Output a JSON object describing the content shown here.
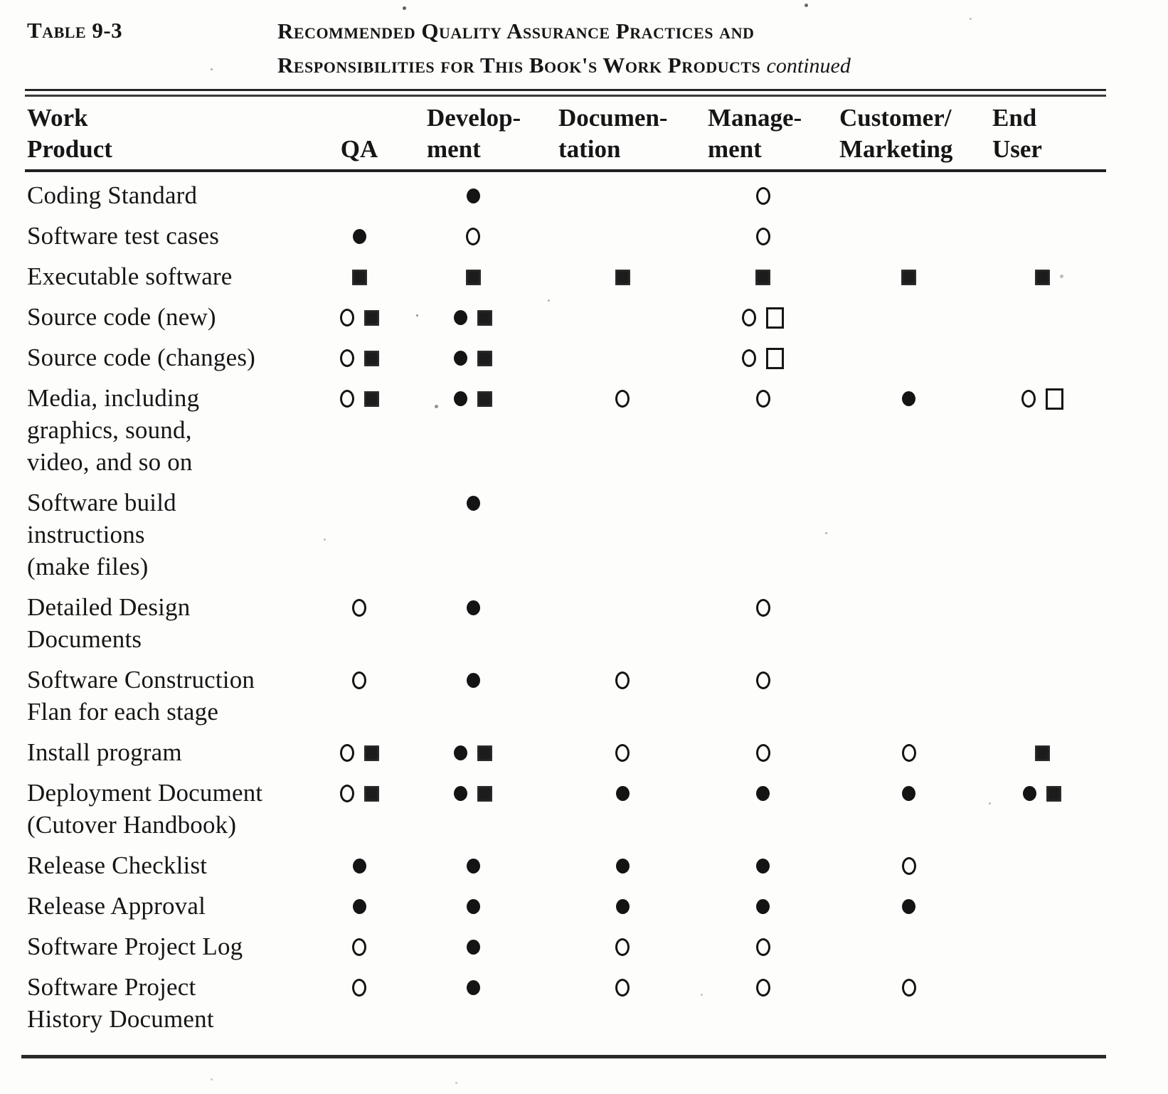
{
  "header": {
    "table_label": "Table 9-3",
    "title_line1": "Recommended Quality Assurance Practices and",
    "title_line2": "Responsibilities for This Book's Work Products",
    "title_suffix": "continued"
  },
  "symbols": {
    "filled-circle": "●",
    "open-circle": "○",
    "filled-square": "■",
    "open-square": "□"
  },
  "table": {
    "columns": [
      {
        "id": "work_product",
        "lines": [
          "Work",
          "Product"
        ]
      },
      {
        "id": "qa",
        "lines": [
          "QA"
        ]
      },
      {
        "id": "development",
        "lines": [
          "Develop-",
          "ment"
        ]
      },
      {
        "id": "documentation",
        "lines": [
          "Documen-",
          "tation"
        ]
      },
      {
        "id": "management",
        "lines": [
          "Manage-",
          "ment"
        ]
      },
      {
        "id": "customer_marketing",
        "lines": [
          "Customer/",
          "Marketing"
        ]
      },
      {
        "id": "end_user",
        "lines": [
          "End",
          "User"
        ]
      }
    ],
    "rows": [
      {
        "product_lines": [
          "Coding Standard"
        ],
        "cells": {
          "qa": [],
          "development": [
            "filled-circle"
          ],
          "documentation": [],
          "management": [
            "open-circle"
          ],
          "customer_marketing": [],
          "end_user": []
        }
      },
      {
        "product_lines": [
          "Software test cases"
        ],
        "cells": {
          "qa": [
            "filled-circle"
          ],
          "development": [
            "open-circle"
          ],
          "documentation": [],
          "management": [
            "open-circle"
          ],
          "customer_marketing": [],
          "end_user": []
        }
      },
      {
        "product_lines": [
          "Executable software"
        ],
        "cells": {
          "qa": [
            "filled-square"
          ],
          "development": [
            "filled-square"
          ],
          "documentation": [
            "filled-square"
          ],
          "management": [
            "filled-square"
          ],
          "customer_marketing": [
            "filled-square"
          ],
          "end_user": [
            "filled-square"
          ]
        }
      },
      {
        "product_lines": [
          "Source code (new)"
        ],
        "cells": {
          "qa": [
            "open-circle",
            "filled-square"
          ],
          "development": [
            "filled-circle",
            "filled-square"
          ],
          "documentation": [],
          "management": [
            "open-circle",
            "open-square"
          ],
          "customer_marketing": [],
          "end_user": []
        }
      },
      {
        "product_lines": [
          "Source code (changes)"
        ],
        "cells": {
          "qa": [
            "open-circle",
            "filled-square"
          ],
          "development": [
            "filled-circle",
            "filled-square"
          ],
          "documentation": [],
          "management": [
            "open-circle",
            "open-square"
          ],
          "customer_marketing": [],
          "end_user": []
        }
      },
      {
        "product_lines": [
          "Media, including",
          "graphics, sound,",
          "video, and so on"
        ],
        "cells": {
          "qa": [
            "open-circle",
            "filled-square"
          ],
          "development": [
            "filled-circle",
            "filled-square"
          ],
          "documentation": [
            "open-circle"
          ],
          "management": [
            "open-circle"
          ],
          "customer_marketing": [
            "filled-circle"
          ],
          "end_user": [
            "open-circle",
            "open-square"
          ]
        }
      },
      {
        "product_lines": [
          "Software build",
          "instructions",
          "(make files)"
        ],
        "cells": {
          "qa": [],
          "development": [
            "filled-circle"
          ],
          "documentation": [],
          "management": [],
          "customer_marketing": [],
          "end_user": []
        }
      },
      {
        "product_lines": [
          "Detailed Design",
          "Documents"
        ],
        "cells": {
          "qa": [
            "open-circle"
          ],
          "development": [
            "filled-circle"
          ],
          "documentation": [],
          "management": [
            "open-circle"
          ],
          "customer_marketing": [],
          "end_user": []
        }
      },
      {
        "product_lines": [
          "Software  Construction",
          "Flan for each stage"
        ],
        "cells": {
          "qa": [
            "open-circle"
          ],
          "development": [
            "filled-circle"
          ],
          "documentation": [
            "open-circle"
          ],
          "management": [
            "open-circle"
          ],
          "customer_marketing": [],
          "end_user": []
        }
      },
      {
        "product_lines": [
          "Install program"
        ],
        "cells": {
          "qa": [
            "open-circle",
            "filled-square"
          ],
          "development": [
            "filled-circle",
            "filled-square"
          ],
          "documentation": [
            "open-circle"
          ],
          "management": [
            "open-circle"
          ],
          "customer_marketing": [
            "open-circle"
          ],
          "end_user": [
            "filled-square"
          ]
        }
      },
      {
        "product_lines": [
          "Deployment Document",
          "(Cutover  Handbook)"
        ],
        "cells": {
          "qa": [
            "open-circle",
            "filled-square"
          ],
          "development": [
            "filled-circle",
            "filled-square"
          ],
          "documentation": [
            "filled-circle"
          ],
          "management": [
            "filled-circle"
          ],
          "customer_marketing": [
            "filled-circle"
          ],
          "end_user": [
            "filled-circle",
            "filled-square"
          ]
        }
      },
      {
        "product_lines": [
          "Release  Checklist"
        ],
        "cells": {
          "qa": [
            "filled-circle"
          ],
          "development": [
            "filled-circle"
          ],
          "documentation": [
            "filled-circle"
          ],
          "management": [
            "filled-circle"
          ],
          "customer_marketing": [
            "open-circle"
          ],
          "end_user": []
        }
      },
      {
        "product_lines": [
          "Release  Approval"
        ],
        "cells": {
          "qa": [
            "filled-circle"
          ],
          "development": [
            "filled-circle"
          ],
          "documentation": [
            "filled-circle"
          ],
          "management": [
            "filled-circle"
          ],
          "customer_marketing": [
            "filled-circle"
          ],
          "end_user": []
        }
      },
      {
        "product_lines": [
          "Software Project Log"
        ],
        "cells": {
          "qa": [
            "open-circle"
          ],
          "development": [
            "filled-circle"
          ],
          "documentation": [
            "open-circle"
          ],
          "management": [
            "open-circle"
          ],
          "customer_marketing": [],
          "end_user": []
        }
      },
      {
        "product_lines": [
          "Software Project",
          "History Document"
        ],
        "cells": {
          "qa": [
            "open-circle"
          ],
          "development": [
            "filled-circle"
          ],
          "documentation": [
            "open-circle"
          ],
          "management": [
            "open-circle"
          ],
          "customer_marketing": [
            "open-circle"
          ],
          "end_user": []
        }
      }
    ]
  }
}
